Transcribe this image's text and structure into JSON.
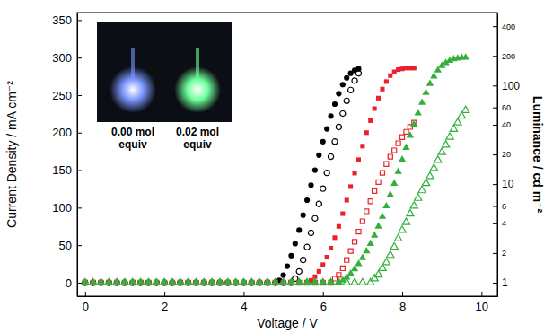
{
  "chart_data": {
    "type": "scatter",
    "xlabel": "Voltage / V",
    "ylabel": "Current Density / mA cm⁻²",
    "y2label": "Luminance / cd m⁻²",
    "xlim": [
      -0.2,
      10.4
    ],
    "xticks": [
      0,
      2,
      4,
      6,
      8,
      10
    ],
    "ylim": [
      -18,
      360
    ],
    "yticks": [
      0,
      50,
      100,
      150,
      200,
      250,
      300,
      350
    ],
    "y2lim": [
      0.73,
      550
    ],
    "y2ticks": [
      1,
      2,
      4,
      6,
      10,
      20,
      40,
      60,
      100,
      200,
      400
    ],
    "log": "y2",
    "annotations": [
      {
        "text": "0.00 mol equiv"
      },
      {
        "text": "0.02 mol equiv"
      }
    ],
    "series": [
      {
        "color": "#000000",
        "marker": "circle",
        "x": [
          0,
          0.2,
          0.4,
          0.6,
          0.8,
          1,
          1.2,
          1.4,
          1.6,
          1.8,
          2,
          2.2,
          2.4,
          2.6,
          2.8,
          3,
          3.2,
          3.4,
          3.6,
          3.8,
          4,
          4.2,
          4.4,
          4.6,
          4.8,
          4.9,
          5,
          5.1,
          5.2,
          5.3,
          5.4,
          5.5,
          5.6,
          5.7,
          5.8,
          5.9,
          6,
          6.1,
          6.2,
          6.3,
          6.4,
          6.5,
          6.6,
          6.7,
          6.8,
          6.9
        ],
        "values": [
          0,
          0,
          0,
          0,
          0,
          0,
          0,
          0,
          0,
          0,
          0,
          0,
          0,
          0,
          0,
          0,
          0,
          0,
          0,
          0,
          0,
          0,
          0,
          0,
          0,
          3,
          10,
          22,
          36,
          52,
          70,
          90,
          110,
          130,
          150,
          170,
          188,
          205,
          222,
          238,
          252,
          264,
          273,
          279,
          283,
          285
        ]
      },
      {
        "color": "#000000",
        "marker": "open-circle",
        "axis": "y2",
        "x": [
          0,
          0.2,
          0.4,
          0.6,
          0.8,
          1,
          1.2,
          1.4,
          1.6,
          1.8,
          2,
          2.2,
          2.4,
          2.6,
          2.8,
          3,
          3.2,
          3.4,
          3.6,
          3.8,
          4,
          4.2,
          4.4,
          4.6,
          4.8,
          5,
          5.2,
          5.3,
          5.4,
          5.5,
          5.6,
          5.7,
          5.8,
          5.9,
          6,
          6.1,
          6.2,
          6.3,
          6.4,
          6.5,
          6.6,
          6.7,
          6.8,
          6.9
        ],
        "values": [
          1,
          1,
          1,
          1,
          1,
          1,
          1,
          1,
          1,
          1,
          1,
          1,
          1,
          1,
          1,
          1,
          1,
          1,
          1,
          1,
          1,
          1,
          1,
          1,
          1,
          1,
          1,
          1.1,
          1.3,
          1.7,
          2.3,
          3.2,
          4.5,
          6.3,
          9,
          13,
          19,
          27,
          38,
          52,
          70,
          90,
          112,
          133
        ]
      },
      {
        "color": "#e8232b",
        "marker": "square",
        "x": [
          0,
          0.2,
          0.4,
          0.6,
          0.8,
          1,
          1.2,
          1.4,
          1.6,
          1.8,
          2,
          2.2,
          2.4,
          2.6,
          2.8,
          3,
          3.2,
          3.4,
          3.6,
          3.8,
          4,
          4.2,
          4.4,
          4.6,
          4.8,
          5,
          5.2,
          5.4,
          5.6,
          5.7,
          5.8,
          5.9,
          6,
          6.1,
          6.2,
          6.3,
          6.4,
          6.5,
          6.6,
          6.7,
          6.8,
          6.9,
          7,
          7.1,
          7.2,
          7.3,
          7.4,
          7.5,
          7.6,
          7.7,
          7.8,
          7.9,
          8,
          8.1,
          8.2,
          8.3
        ],
        "values": [
          0,
          0,
          0,
          0,
          0,
          0,
          0,
          0,
          0,
          0,
          0,
          0,
          0,
          0,
          0,
          0,
          0,
          0,
          0,
          0,
          0,
          0,
          0,
          0,
          0,
          0,
          0,
          0,
          0,
          3,
          8,
          15,
          24,
          34,
          46,
          60,
          75,
          92,
          110,
          128,
          146,
          164,
          182,
          200,
          216,
          232,
          246,
          258,
          268,
          276,
          281,
          284,
          285,
          286,
          286,
          286
        ]
      },
      {
        "color": "#e8232b",
        "marker": "open-square",
        "axis": "y2",
        "x": [
          0,
          0.2,
          0.4,
          0.6,
          0.8,
          1,
          1.2,
          1.4,
          1.6,
          1.8,
          2,
          2.2,
          2.4,
          2.6,
          2.8,
          3,
          3.2,
          3.4,
          3.6,
          3.8,
          4,
          4.2,
          4.4,
          4.6,
          4.8,
          5,
          5.2,
          5.4,
          5.6,
          5.8,
          6,
          6.2,
          6.3,
          6.4,
          6.5,
          6.6,
          6.7,
          6.8,
          6.9,
          7,
          7.1,
          7.2,
          7.3,
          7.4,
          7.5,
          7.6,
          7.7,
          7.8,
          7.9,
          8,
          8.1,
          8.2,
          8.3
        ],
        "values": [
          1,
          1,
          1,
          1,
          1,
          1,
          1,
          1,
          1,
          1,
          1,
          1,
          1,
          1,
          1,
          1,
          1,
          1,
          1,
          1,
          1,
          1,
          1,
          1,
          1,
          1,
          1,
          1,
          1,
          1,
          1,
          1,
          1.1,
          1.2,
          1.4,
          1.7,
          2.1,
          2.6,
          3.3,
          4.2,
          5.3,
          6.7,
          8.5,
          10.5,
          13,
          16,
          19,
          22,
          26,
          30,
          34,
          38,
          42
        ]
      },
      {
        "color": "#33b03a",
        "marker": "triangle",
        "x": [
          0,
          0.2,
          0.4,
          0.6,
          0.8,
          1,
          1.2,
          1.4,
          1.6,
          1.8,
          2,
          2.2,
          2.4,
          2.6,
          2.8,
          3,
          3.2,
          3.4,
          3.6,
          3.8,
          4,
          4.2,
          4.4,
          4.6,
          4.8,
          5,
          5.2,
          5.4,
          5.6,
          5.8,
          6,
          6.2,
          6.4,
          6.5,
          6.6,
          6.7,
          6.8,
          6.9,
          7,
          7.1,
          7.2,
          7.3,
          7.4,
          7.5,
          7.6,
          7.7,
          7.8,
          7.9,
          8,
          8.1,
          8.2,
          8.3,
          8.4,
          8.5,
          8.6,
          8.7,
          8.8,
          8.9,
          9,
          9.1,
          9.2,
          9.3,
          9.4,
          9.5,
          9.6
        ],
        "values": [
          0,
          0,
          0,
          0,
          0,
          0,
          0,
          0,
          0,
          0,
          0,
          0,
          0,
          0,
          0,
          0,
          0,
          0,
          0,
          0,
          0,
          0,
          0,
          0,
          0,
          0,
          0,
          0,
          0,
          0,
          0,
          0,
          0,
          3,
          7,
          12,
          18,
          25,
          33,
          42,
          52,
          63,
          75,
          88,
          102,
          117,
          132,
          148,
          164,
          180,
          196,
          211,
          226,
          240,
          253,
          265,
          275,
          283,
          289,
          293,
          296,
          298,
          299,
          300,
          300
        ]
      },
      {
        "color": "#33b03a",
        "marker": "open-triangle",
        "axis": "y2",
        "x": [
          0,
          0.2,
          0.4,
          0.6,
          0.8,
          1,
          1.2,
          1.4,
          1.6,
          1.8,
          2,
          2.2,
          2.4,
          2.6,
          2.8,
          3,
          3.2,
          3.4,
          3.6,
          3.8,
          4,
          4.2,
          4.4,
          4.6,
          4.8,
          5,
          5.2,
          5.4,
          5.6,
          5.8,
          6,
          6.2,
          6.4,
          6.6,
          6.8,
          7,
          7.2,
          7.3,
          7.4,
          7.5,
          7.6,
          7.7,
          7.8,
          7.9,
          8,
          8.1,
          8.2,
          8.3,
          8.4,
          8.5,
          8.6,
          8.7,
          8.8,
          8.9,
          9,
          9.1,
          9.2,
          9.3,
          9.4,
          9.5,
          9.6
        ],
        "values": [
          1,
          1,
          1,
          1,
          1,
          1,
          1,
          1,
          1,
          1,
          1,
          1,
          1,
          1,
          1,
          1,
          1,
          1,
          1,
          1,
          1,
          1,
          1,
          1,
          1,
          1,
          1,
          1,
          1,
          1,
          1,
          1,
          1,
          1,
          1,
          1,
          1,
          1.1,
          1.2,
          1.4,
          1.6,
          1.9,
          2.3,
          2.8,
          3.4,
          4.1,
          5,
          6,
          7.2,
          8.6,
          10.2,
          12,
          14.5,
          17.5,
          21,
          25,
          30,
          36,
          42,
          49,
          56
        ]
      }
    ]
  }
}
